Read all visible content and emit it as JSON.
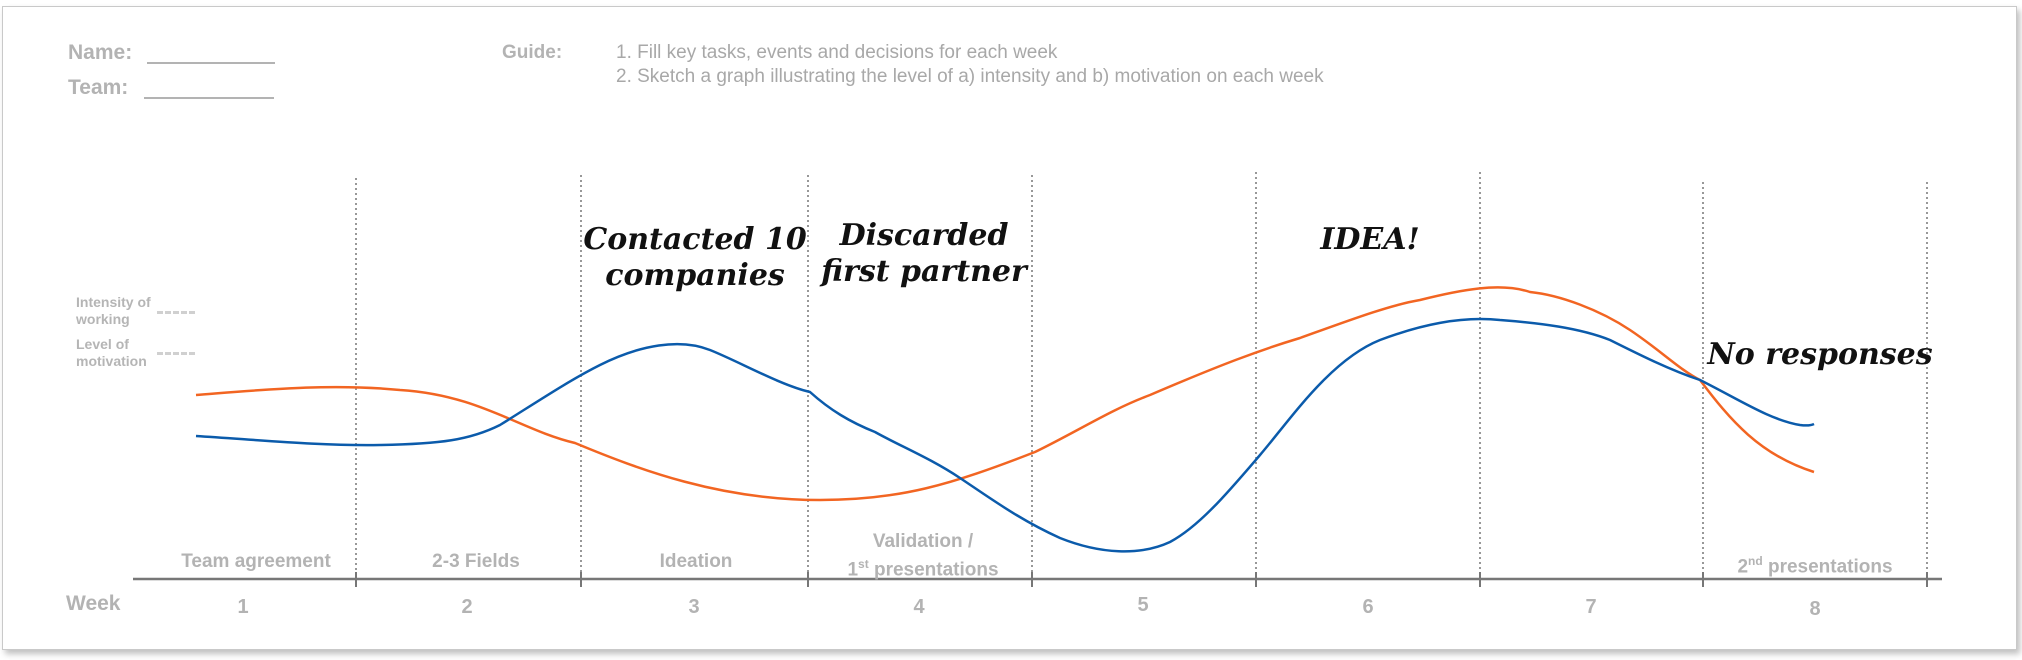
{
  "header": {
    "name_label": "Name:",
    "team_label": "Team:",
    "guide_label": "Guide:",
    "guide_items": [
      "1. Fill key tasks, events and decisions for each week",
      "2. Sketch a graph illustrating the level of a) intensity and b) motivation on each week"
    ]
  },
  "legend": {
    "intensity": "Intensity of working",
    "motivation": "Level of motivation"
  },
  "timeline": {
    "axis_label": "Week",
    "weeks": [
      "1",
      "2",
      "3",
      "4",
      "5",
      "6",
      "7",
      "8"
    ],
    "phases": [
      {
        "week": "1",
        "text": "Team agreement"
      },
      {
        "week": "2",
        "text": "2-3 Fields"
      },
      {
        "week": "3",
        "text": "Ideation"
      },
      {
        "week": "4",
        "line1": "Validation /",
        "line2_pre": "1",
        "line2_sup": "st",
        "line2_post": " presentations"
      },
      {
        "week": "8",
        "pre": "2",
        "sup": "nd",
        "post": " presentations"
      }
    ]
  },
  "notes": {
    "week3": [
      "Contacted 10",
      "companies"
    ],
    "week4": [
      "Discarded",
      "first partner"
    ],
    "week6": "IDEA!",
    "week8": "No responses"
  },
  "colors": {
    "intensity_line": "#f26522",
    "motivation_line": "#0b5bab",
    "text_gray": "#b3b3b3"
  }
}
